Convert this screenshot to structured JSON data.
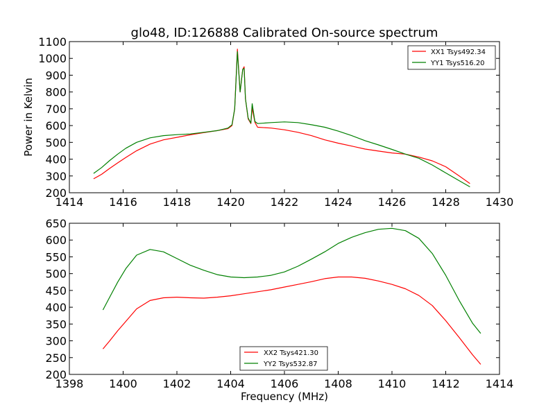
{
  "chart_data": [
    {
      "type": "line",
      "title": "glo48, ID:126888 Calibrated On-source spectrum",
      "xlabel": "",
      "ylabel": "Power in Kelvin",
      "xlim": [
        1414,
        1430
      ],
      "ylim": [
        200,
        1100
      ],
      "xticks": [
        1414,
        1416,
        1418,
        1420,
        1422,
        1424,
        1426,
        1428,
        1430
      ],
      "yticks": [
        200,
        300,
        400,
        500,
        600,
        700,
        800,
        900,
        1000,
        1100
      ],
      "legend_position": "top-right",
      "grid": false,
      "series": [
        {
          "name": "XX1 Tsys492.34",
          "color": "#ff0000",
          "x": [
            1414.9,
            1415.2,
            1415.5,
            1415.8,
            1416.1,
            1416.5,
            1417.0,
            1417.5,
            1418.0,
            1418.5,
            1419.0,
            1419.5,
            1419.9,
            1420.05,
            1420.15,
            1420.25,
            1420.35,
            1420.45,
            1420.5,
            1420.55,
            1420.65,
            1420.75,
            1420.8,
            1420.9,
            1421.0,
            1421.5,
            1422.0,
            1422.5,
            1423.0,
            1423.5,
            1424.0,
            1424.5,
            1425.0,
            1425.5,
            1426.0,
            1426.5,
            1427.0,
            1427.5,
            1428.0,
            1428.5,
            1428.9
          ],
          "values": [
            283,
            310,
            345,
            378,
            410,
            450,
            490,
            515,
            530,
            545,
            558,
            570,
            582,
            600,
            700,
            1055,
            800,
            935,
            950,
            760,
            640,
            612,
            705,
            620,
            590,
            585,
            575,
            560,
            540,
            515,
            495,
            478,
            460,
            448,
            437,
            430,
            412,
            390,
            355,
            300,
            255
          ]
        },
        {
          "name": "YY1 Tsys516.20",
          "color": "#008000",
          "x": [
            1414.9,
            1415.2,
            1415.5,
            1415.8,
            1416.1,
            1416.5,
            1417.0,
            1417.5,
            1418.0,
            1418.5,
            1419.0,
            1419.5,
            1419.9,
            1420.05,
            1420.15,
            1420.25,
            1420.35,
            1420.45,
            1420.5,
            1420.55,
            1420.65,
            1420.75,
            1420.8,
            1420.9,
            1421.0,
            1421.5,
            1422.0,
            1422.5,
            1423.0,
            1423.5,
            1424.0,
            1424.5,
            1425.0,
            1425.5,
            1426.0,
            1426.5,
            1427.0,
            1427.5,
            1428.0,
            1428.5,
            1428.9
          ],
          "values": [
            315,
            350,
            392,
            430,
            465,
            500,
            527,
            540,
            546,
            550,
            560,
            570,
            585,
            605,
            700,
            1040,
            800,
            935,
            940,
            760,
            645,
            615,
            730,
            625,
            612,
            618,
            622,
            618,
            605,
            590,
            567,
            540,
            510,
            485,
            458,
            430,
            405,
            365,
            318,
            272,
            235
          ]
        }
      ]
    },
    {
      "type": "line",
      "title": "",
      "xlabel": "Frequency (MHz)",
      "ylabel": "",
      "xlim": [
        1398,
        1414
      ],
      "ylim": [
        200,
        650
      ],
      "xticks": [
        1398,
        1400,
        1402,
        1404,
        1406,
        1408,
        1410,
        1412,
        1414
      ],
      "yticks": [
        200,
        250,
        300,
        350,
        400,
        450,
        500,
        550,
        600,
        650
      ],
      "legend_position": "bottom-center",
      "grid": false,
      "series": [
        {
          "name": "XX2 Tsys421.30",
          "color": "#ff0000",
          "x": [
            1399.25,
            1399.5,
            1399.8,
            1400.1,
            1400.5,
            1401.0,
            1401.5,
            1402.0,
            1402.5,
            1403.0,
            1403.5,
            1404.0,
            1404.5,
            1405.0,
            1405.5,
            1406.0,
            1406.5,
            1407.0,
            1407.5,
            1408.0,
            1408.5,
            1409.0,
            1409.5,
            1410.0,
            1410.5,
            1411.0,
            1411.5,
            1412.0,
            1412.5,
            1413.0,
            1413.3
          ],
          "values": [
            276,
            300,
            330,
            358,
            395,
            420,
            428,
            430,
            428,
            427,
            430,
            434,
            440,
            446,
            452,
            460,
            468,
            476,
            485,
            490,
            490,
            486,
            478,
            468,
            455,
            435,
            405,
            360,
            310,
            258,
            230
          ]
        },
        {
          "name": "YY2 Tsys532.87",
          "color": "#008000",
          "x": [
            1399.25,
            1399.5,
            1399.8,
            1400.1,
            1400.5,
            1401.0,
            1401.5,
            1402.0,
            1402.5,
            1403.0,
            1403.5,
            1404.0,
            1404.5,
            1405.0,
            1405.5,
            1406.0,
            1406.5,
            1407.0,
            1407.5,
            1408.0,
            1408.5,
            1409.0,
            1409.5,
            1410.0,
            1410.5,
            1411.0,
            1411.5,
            1412.0,
            1412.5,
            1413.0,
            1413.3
          ],
          "values": [
            392,
            430,
            475,
            515,
            555,
            572,
            565,
            545,
            525,
            510,
            497,
            490,
            488,
            490,
            495,
            505,
            522,
            543,
            565,
            590,
            608,
            622,
            632,
            635,
            628,
            605,
            560,
            495,
            420,
            352,
            322
          ]
        }
      ]
    }
  ]
}
